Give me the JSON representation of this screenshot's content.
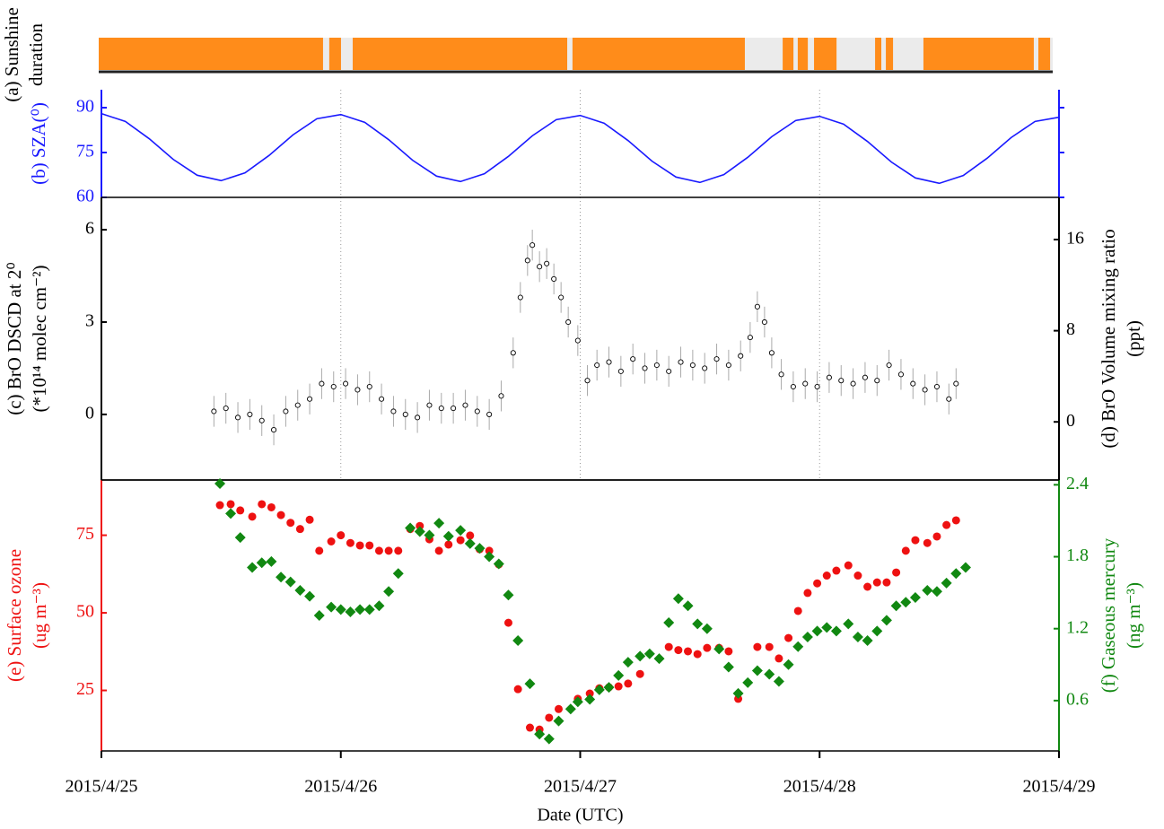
{
  "chart_data": [
    {
      "type": "timeline",
      "ylabel": [
        "(a) Sunshine",
        "duration"
      ],
      "xlim": [
        0,
        4
      ],
      "color": "#ff8c1a",
      "background": "#ebebeb",
      "segments": [
        [
          0,
          0.937
        ],
        [
          0.963,
          1.012
        ],
        [
          1.061,
          1.957
        ],
        [
          1.979,
          2.699
        ],
        [
          2.857,
          2.902
        ],
        [
          2.92,
          2.962
        ],
        [
          2.988,
          3.082
        ],
        [
          3.243,
          3.269
        ],
        [
          3.288,
          3.318
        ],
        [
          3.445,
          3.906
        ],
        [
          3.925,
          3.974
        ]
      ]
    },
    {
      "type": "line",
      "ylabel": [
        "(b) SZA(⁰)"
      ],
      "xlim": [
        0,
        4
      ],
      "ylim": [
        60,
        96
      ],
      "yticks": [
        60,
        75,
        90
      ],
      "y_color": "#1a1aff",
      "y2_color": "#1a1aff",
      "grid": true,
      "series": [
        {
          "name": "SZA",
          "color": "#1a1aff",
          "x": [
            0,
            0.1,
            0.2,
            0.3,
            0.4,
            0.5,
            0.6,
            0.7,
            0.8,
            0.9,
            1,
            1.1,
            1.2,
            1.3,
            1.4,
            1.5,
            1.6,
            1.7,
            1.8,
            1.9,
            2,
            2.1,
            2.2,
            2.3,
            2.4,
            2.5,
            2.6,
            2.7,
            2.8,
            2.9,
            3,
            3.1,
            3.2,
            3.3,
            3.4,
            3.5,
            3.6,
            3.7,
            3.8,
            3.9,
            4
          ],
          "values": [
            88.0,
            85.4,
            79.6,
            72.7,
            67.4,
            65.6,
            68.2,
            74.0,
            80.9,
            86.3,
            87.7,
            85.1,
            79.3,
            72.4,
            67.1,
            65.3,
            67.9,
            73.7,
            80.6,
            86.0,
            87.4,
            84.8,
            79.0,
            72.1,
            66.8,
            65.0,
            67.6,
            73.4,
            80.3,
            85.7,
            87.1,
            84.5,
            78.7,
            71.8,
            66.5,
            64.7,
            67.3,
            73.1,
            80.0,
            85.4,
            86.8
          ]
        }
      ]
    },
    {
      "type": "scatter",
      "ylabel": [
        "(c) BrO DSCD at 2⁰",
        "(*10¹⁴ molec cm⁻²)"
      ],
      "y2label": [
        "(d) BrO Volume mixing ratio",
        "(ppt)"
      ],
      "xlim": [
        0,
        4
      ],
      "ylim": [
        -2.13,
        7.05
      ],
      "yticks": [
        0,
        3,
        6
      ],
      "y2lim": [
        -5.1,
        19.7
      ],
      "y2ticks": [
        0,
        8,
        16
      ],
      "y_color": "#000000",
      "y2_color": "#000000",
      "grid": true,
      "series": [
        {
          "name": "BrO DSCD",
          "color": "#000000",
          "marker": "open-circle",
          "error": 0.5,
          "x": [
            0.47,
            0.52,
            0.57,
            0.62,
            0.67,
            0.72,
            0.77,
            0.82,
            0.87,
            0.92,
            0.97,
            1.02,
            1.07,
            1.12,
            1.17,
            1.22,
            1.27,
            1.32,
            1.37,
            1.42,
            1.47,
            1.52,
            1.57,
            1.62,
            1.67,
            1.72,
            1.75,
            1.78,
            1.8,
            1.83,
            1.86,
            1.89,
            1.92,
            1.95,
            1.99,
            2.03,
            2.07,
            2.12,
            2.17,
            2.22,
            2.27,
            2.32,
            2.37,
            2.42,
            2.47,
            2.52,
            2.57,
            2.62,
            2.67,
            2.71,
            2.74,
            2.77,
            2.8,
            2.84,
            2.89,
            2.94,
            2.99,
            3.04,
            3.09,
            3.14,
            3.19,
            3.24,
            3.29,
            3.34,
            3.39,
            3.44,
            3.49,
            3.54,
            3.57
          ],
          "values": [
            0.1,
            0.2,
            -0.1,
            0.0,
            -0.2,
            -0.5,
            0.1,
            0.3,
            0.5,
            1.0,
            0.9,
            1.0,
            0.8,
            0.9,
            0.5,
            0.1,
            0.0,
            -0.1,
            0.3,
            0.2,
            0.2,
            0.3,
            0.1,
            0.0,
            0.6,
            2.0,
            3.8,
            5.0,
            5.5,
            4.8,
            4.9,
            4.4,
            3.8,
            3.0,
            2.4,
            1.1,
            1.6,
            1.7,
            1.4,
            1.8,
            1.5,
            1.6,
            1.4,
            1.7,
            1.6,
            1.5,
            1.8,
            1.6,
            1.9,
            2.5,
            3.5,
            3.0,
            2.0,
            1.3,
            0.9,
            1.0,
            0.9,
            1.2,
            1.1,
            1.0,
            1.2,
            1.1,
            1.6,
            1.3,
            1.0,
            0.8,
            0.9,
            0.5,
            1.0
          ]
        }
      ]
    },
    {
      "type": "scatter",
      "ylabel": [
        "(e) Surface ozone",
        "(ug m⁻³)"
      ],
      "y2label": [
        "(f) Gaseous mercury",
        "(ng m⁻³)"
      ],
      "xlabel": "Date (UTC)",
      "xlim": [
        0,
        4
      ],
      "xticks": [
        {
          "value": 0,
          "label": "2015/4/25"
        },
        {
          "value": 1,
          "label": "2015/4/26"
        },
        {
          "value": 2,
          "label": "2015/4/27"
        },
        {
          "value": 3,
          "label": "2015/4/28"
        },
        {
          "value": 4,
          "label": "2015/4/29"
        }
      ],
      "ylim": [
        5.5,
        92.8
      ],
      "yticks": [
        25,
        50,
        75
      ],
      "y2lim": [
        0.18,
        2.44
      ],
      "y2ticks": [
        0.6,
        1.2,
        1.8,
        2.4
      ],
      "y_color": "#ee1111",
      "y2_color": "#118811",
      "series": [
        {
          "name": "Surface ozone",
          "color": "#ee1111",
          "marker": "circle",
          "x": [
            0.495,
            0.54,
            0.58,
            0.63,
            0.67,
            0.71,
            0.75,
            0.79,
            0.83,
            0.87,
            0.91,
            0.96,
            1.0,
            1.04,
            1.08,
            1.12,
            1.16,
            1.2,
            1.24,
            1.29,
            1.33,
            1.37,
            1.41,
            1.45,
            1.5,
            1.54,
            1.58,
            1.62,
            1.66,
            1.7,
            1.74,
            1.79,
            1.83,
            1.87,
            1.91,
            1.99,
            2.04,
            2.08,
            2.12,
            2.16,
            2.2,
            2.25,
            2.37,
            2.41,
            2.45,
            2.49,
            2.53,
            2.58,
            2.62,
            2.66,
            2.74,
            2.79,
            2.83,
            2.87,
            2.91,
            2.95,
            2.99,
            3.03,
            3.07,
            3.12,
            3.16,
            3.2,
            3.24,
            3.28,
            3.32,
            3.36,
            3.4,
            3.45,
            3.49,
            3.53,
            3.57
          ],
          "values": [
            84.7,
            85,
            83,
            81,
            85,
            84,
            81.5,
            79,
            77,
            80,
            70,
            73,
            75,
            72.5,
            71.7,
            71.7,
            70,
            70,
            70,
            77,
            78,
            73.7,
            70,
            72,
            73.4,
            74.9,
            70.5,
            70,
            65.6,
            46.8,
            25.4,
            13,
            12.4,
            16.2,
            19,
            22.3,
            24,
            25.7,
            26,
            26.3,
            27.2,
            30.3,
            39,
            38,
            37.6,
            36.7,
            38.7,
            38.7,
            37.6,
            22.3,
            39,
            39,
            35.3,
            41.9,
            50.6,
            56.4,
            59.5,
            62,
            63.6,
            65.3,
            62,
            58.4,
            59.8,
            59.8,
            63,
            70,
            73.4,
            72.5,
            74.6,
            78.3,
            79.8
          ]
        },
        {
          "name": "Gaseous mercury",
          "color": "#118811",
          "marker": "diamond",
          "axis": "y2",
          "x": [
            0.495,
            0.54,
            0.58,
            0.63,
            0.67,
            0.71,
            0.75,
            0.79,
            0.83,
            0.87,
            0.91,
            0.96,
            1.0,
            1.04,
            1.08,
            1.12,
            1.16,
            1.2,
            1.24,
            1.29,
            1.33,
            1.37,
            1.41,
            1.45,
            1.5,
            1.54,
            1.58,
            1.62,
            1.66,
            1.7,
            1.74,
            1.79,
            1.83,
            1.87,
            1.91,
            1.96,
            1.99,
            2.04,
            2.08,
            2.12,
            2.16,
            2.2,
            2.25,
            2.29,
            2.33,
            2.37,
            2.41,
            2.45,
            2.49,
            2.53,
            2.58,
            2.62,
            2.66,
            2.7,
            2.74,
            2.79,
            2.83,
            2.87,
            2.91,
            2.95,
            2.99,
            3.03,
            3.07,
            3.12,
            3.16,
            3.2,
            3.24,
            3.28,
            3.32,
            3.36,
            3.4,
            3.45,
            3.49,
            3.53,
            3.57,
            3.61
          ],
          "values": [
            2.41,
            2.16,
            1.96,
            1.71,
            1.75,
            1.76,
            1.63,
            1.59,
            1.52,
            1.47,
            1.31,
            1.38,
            1.36,
            1.34,
            1.36,
            1.36,
            1.39,
            1.51,
            1.66,
            2.04,
            2.01,
            1.98,
            2.08,
            1.97,
            2.02,
            1.91,
            1.87,
            1.8,
            1.74,
            1.48,
            1.1,
            0.74,
            0.32,
            0.28,
            0.43,
            0.53,
            0.59,
            0.61,
            0.69,
            0.71,
            0.81,
            0.92,
            0.97,
            0.99,
            0.95,
            1.25,
            1.45,
            1.39,
            1.24,
            1.2,
            1.03,
            0.88,
            0.66,
            0.75,
            0.85,
            0.82,
            0.76,
            0.9,
            1.05,
            1.13,
            1.18,
            1.21,
            1.18,
            1.24,
            1.13,
            1.1,
            1.18,
            1.27,
            1.39,
            1.42,
            1.46,
            1.52,
            1.51,
            1.58,
            1.66,
            1.71
          ]
        }
      ]
    }
  ]
}
